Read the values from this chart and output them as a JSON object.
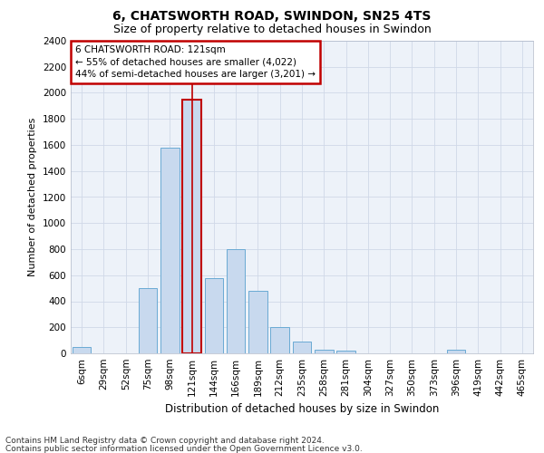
{
  "title1": "6, CHATSWORTH ROAD, SWINDON, SN25 4TS",
  "title2": "Size of property relative to detached houses in Swindon",
  "xlabel": "Distribution of detached houses by size in Swindon",
  "ylabel": "Number of detached properties",
  "footer1": "Contains HM Land Registry data © Crown copyright and database right 2024.",
  "footer2": "Contains public sector information licensed under the Open Government Licence v3.0.",
  "annotation_title": "6 CHATSWORTH ROAD: 121sqm",
  "annotation_line1": "← 55% of detached houses are smaller (4,022)",
  "annotation_line2": "44% of semi-detached houses are larger (3,201) →",
  "bar_labels": [
    "6sqm",
    "29sqm",
    "52sqm",
    "75sqm",
    "98sqm",
    "121sqm",
    "144sqm",
    "166sqm",
    "189sqm",
    "212sqm",
    "235sqm",
    "258sqm",
    "281sqm",
    "304sqm",
    "327sqm",
    "350sqm",
    "373sqm",
    "396sqm",
    "419sqm",
    "442sqm",
    "465sqm"
  ],
  "bar_values": [
    50,
    0,
    0,
    500,
    1580,
    1950,
    580,
    800,
    480,
    200,
    90,
    30,
    20,
    0,
    0,
    0,
    0,
    25,
    0,
    0,
    0
  ],
  "bar_color": "#c8d9ee",
  "bar_edge_color": "#6aaad4",
  "highlight_bar_index": 5,
  "vline_color": "#c00000",
  "ylim_max": 2400,
  "ytick_step": 200,
  "grid_color": "#d0d8e8",
  "background_color": "#edf2f9",
  "annotation_box_facecolor": "#ffffff",
  "annotation_box_edgecolor": "#c00000",
  "title1_fontsize": 10,
  "title2_fontsize": 9,
  "ylabel_fontsize": 8,
  "xlabel_fontsize": 8.5,
  "tick_fontsize": 7.5,
  "ann_fontsize": 7.5,
  "footer_fontsize": 6.5,
  "bar_width": 0.85
}
